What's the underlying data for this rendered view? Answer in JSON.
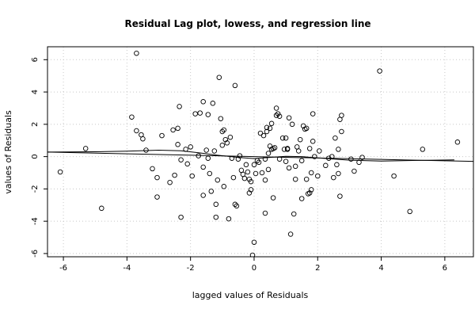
{
  "chart_data": {
    "type": "scatter",
    "title": "Residual Lag plot, lowess, and regression line",
    "xlabel": "lagged values of Residuals",
    "ylabel": "values of Residuals",
    "xlim": [
      -6.5,
      6.9
    ],
    "ylim": [
      -6.2,
      6.8
    ],
    "xticks": [
      -6,
      -4,
      -2,
      0,
      2,
      4,
      6
    ],
    "yticks": [
      -6,
      -4,
      -2,
      0,
      2,
      4,
      6
    ],
    "grid": true,
    "colors": {
      "points": "#000000",
      "lines": "#000000",
      "grid": "#c8c8c8",
      "background": "#ffffff"
    },
    "points": [
      [
        -6.1,
        -0.95
      ],
      [
        -5.3,
        0.5
      ],
      [
        -4.8,
        -3.2
      ],
      [
        -3.7,
        6.4
      ],
      [
        -3.85,
        2.45
      ],
      [
        -3.55,
        1.35
      ],
      [
        -3.5,
        1.1
      ],
      [
        -3.7,
        1.6
      ],
      [
        -3.4,
        0.4
      ],
      [
        -3.2,
        -0.75
      ],
      [
        -3.05,
        -1.3
      ],
      [
        -3.05,
        -2.5
      ],
      [
        -2.9,
        1.3
      ],
      [
        -2.65,
        -1.6
      ],
      [
        -2.5,
        -1.15
      ],
      [
        -2.55,
        1.65
      ],
      [
        -2.4,
        1.75
      ],
      [
        -2.4,
        0.75
      ],
      [
        -2.35,
        3.1
      ],
      [
        -2.3,
        -0.2
      ],
      [
        -2.3,
        -3.75
      ],
      [
        -2.15,
        0.45
      ],
      [
        -2.1,
        -0.45
      ],
      [
        -2.0,
        0.6
      ],
      [
        -1.95,
        -1.2
      ],
      [
        -1.85,
        2.65
      ],
      [
        -1.75,
        0.05
      ],
      [
        -1.7,
        2.7
      ],
      [
        -1.6,
        3.4
      ],
      [
        -1.6,
        -0.65
      ],
      [
        -1.6,
        -2.4
      ],
      [
        -1.45,
        2.6
      ],
      [
        -1.5,
        0.4
      ],
      [
        -1.45,
        -0.1
      ],
      [
        -1.4,
        -1.05
      ],
      [
        -1.35,
        -2.15
      ],
      [
        -1.3,
        3.3
      ],
      [
        -1.25,
        0.35
      ],
      [
        -1.2,
        -3.75
      ],
      [
        -1.2,
        -2.95
      ],
      [
        -1.15,
        -1.45
      ],
      [
        -1.1,
        4.9
      ],
      [
        -1.05,
        2.35
      ],
      [
        -1.0,
        0.7
      ],
      [
        -1.0,
        1.55
      ],
      [
        -0.95,
        1.65
      ],
      [
        -0.95,
        -1.85
      ],
      [
        -0.9,
        1.05
      ],
      [
        -0.85,
        0.85
      ],
      [
        -0.8,
        -3.85
      ],
      [
        -0.75,
        1.2
      ],
      [
        -0.7,
        -0.1
      ],
      [
        -0.65,
        -1.3
      ],
      [
        -0.6,
        4.4
      ],
      [
        -0.6,
        -2.95
      ],
      [
        -0.55,
        -3.05
      ],
      [
        -0.5,
        -0.15
      ],
      [
        -0.45,
        0.05
      ],
      [
        -0.4,
        -0.85
      ],
      [
        -0.35,
        -1.1
      ],
      [
        -0.3,
        -1.35
      ],
      [
        -0.25,
        -0.5
      ],
      [
        -0.2,
        -0.95
      ],
      [
        -0.15,
        -1.4
      ],
      [
        -0.1,
        -1.55
      ],
      [
        -0.1,
        -2.05
      ],
      [
        -0.15,
        -2.25
      ],
      [
        -0.05,
        -6.1
      ],
      [
        0.0,
        -0.5
      ],
      [
        0.0,
        -5.3
      ],
      [
        0.05,
        -1.05
      ],
      [
        0.1,
        -0.25
      ],
      [
        0.15,
        -0.35
      ],
      [
        0.2,
        1.45
      ],
      [
        0.25,
        -1.0
      ],
      [
        0.3,
        1.3
      ],
      [
        0.35,
        -0.15
      ],
      [
        0.35,
        -1.45
      ],
      [
        0.35,
        -3.5
      ],
      [
        0.4,
        1.55
      ],
      [
        0.4,
        1.8
      ],
      [
        0.45,
        -0.8
      ],
      [
        0.45,
        0.2
      ],
      [
        0.5,
        0.65
      ],
      [
        0.5,
        1.75
      ],
      [
        0.55,
        2.05
      ],
      [
        0.55,
        0.45
      ],
      [
        0.6,
        -2.55
      ],
      [
        0.6,
        0.5
      ],
      [
        0.65,
        0.55
      ],
      [
        0.7,
        3.0
      ],
      [
        0.7,
        2.55
      ],
      [
        0.75,
        2.65
      ],
      [
        0.8,
        2.5
      ],
      [
        0.8,
        -0.15
      ],
      [
        0.9,
        1.15
      ],
      [
        0.95,
        0.45
      ],
      [
        1.0,
        -0.3
      ],
      [
        1.0,
        1.15
      ],
      [
        1.05,
        0.5
      ],
      [
        1.05,
        0.45
      ],
      [
        1.1,
        2.4
      ],
      [
        1.1,
        -0.7
      ],
      [
        1.15,
        -4.8
      ],
      [
        1.2,
        2.0
      ],
      [
        1.25,
        -3.55
      ],
      [
        1.3,
        -0.6
      ],
      [
        1.3,
        -1.4
      ],
      [
        1.35,
        0.6
      ],
      [
        1.4,
        0.35
      ],
      [
        1.45,
        1.05
      ],
      [
        1.5,
        -2.6
      ],
      [
        1.5,
        -0.25
      ],
      [
        1.55,
        1.9
      ],
      [
        1.6,
        1.7
      ],
      [
        1.65,
        1.75
      ],
      [
        1.65,
        -1.4
      ],
      [
        1.7,
        -2.3
      ],
      [
        1.75,
        -2.25
      ],
      [
        1.75,
        0.5
      ],
      [
        1.8,
        -1.0
      ],
      [
        1.8,
        -2.05
      ],
      [
        1.85,
        2.65
      ],
      [
        1.85,
        0.95
      ],
      [
        1.9,
        0.0
      ],
      [
        2.0,
        -1.2
      ],
      [
        2.05,
        0.35
      ],
      [
        2.25,
        -0.55
      ],
      [
        2.35,
        -0.1
      ],
      [
        2.45,
        0.0
      ],
      [
        2.5,
        -1.3
      ],
      [
        2.55,
        1.15
      ],
      [
        2.6,
        -0.5
      ],
      [
        2.65,
        -1.05
      ],
      [
        2.65,
        0.45
      ],
      [
        2.7,
        2.3
      ],
      [
        2.75,
        2.55
      ],
      [
        2.75,
        1.55
      ],
      [
        2.7,
        -2.45
      ],
      [
        3.05,
        -0.15
      ],
      [
        3.15,
        -0.9
      ],
      [
        3.3,
        -0.35
      ],
      [
        3.4,
        -0.05
      ],
      [
        3.95,
        5.3
      ],
      [
        4.4,
        -1.2
      ],
      [
        4.9,
        -3.4
      ],
      [
        5.3,
        0.45
      ],
      [
        6.4,
        0.9
      ]
    ],
    "lowess": [
      [
        -6.5,
        0.28
      ],
      [
        -5.0,
        0.3
      ],
      [
        -4.0,
        0.34
      ],
      [
        -3.0,
        0.4
      ],
      [
        -2.3,
        0.36
      ],
      [
        -1.8,
        0.25
      ],
      [
        -1.2,
        0.1
      ],
      [
        -0.5,
        -0.05
      ],
      [
        0.0,
        -0.12
      ],
      [
        0.5,
        -0.05
      ],
      [
        1.0,
        0.02
      ],
      [
        1.5,
        0.0
      ],
      [
        2.0,
        -0.08
      ],
      [
        3.0,
        -0.22
      ],
      [
        4.0,
        -0.28
      ],
      [
        5.0,
        -0.24
      ],
      [
        6.3,
        -0.2
      ]
    ],
    "regression": {
      "intercept": 0.0,
      "slope": -0.043
    }
  }
}
